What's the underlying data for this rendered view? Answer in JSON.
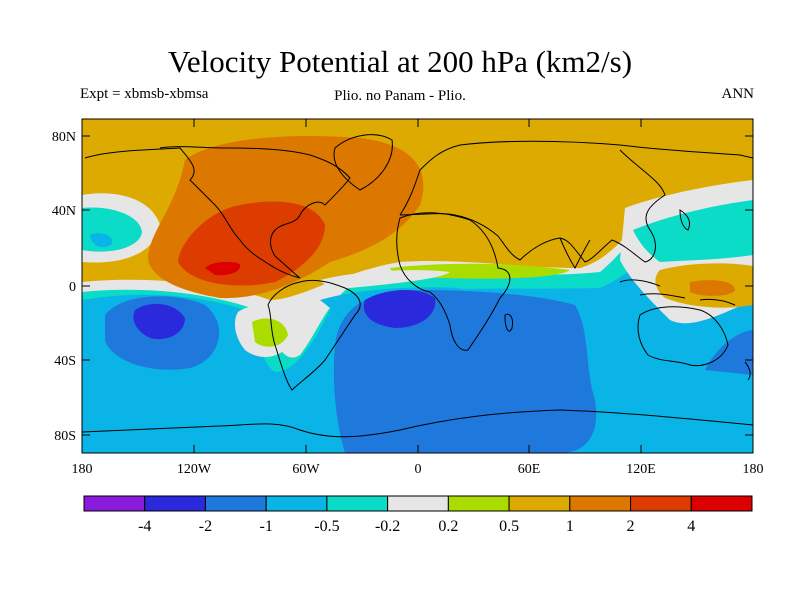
{
  "title": "Velocity Potential at 200 hPa (km2/s)",
  "subtitle_left": "Expt = xbmsb-xbmsa",
  "subtitle_center": "Plio. no Panam - Plio.",
  "subtitle_right": "ANN",
  "lat_labels": [
    "80N",
    "40N",
    "0",
    "40S",
    "80S"
  ],
  "lon_labels": [
    "180",
    "120W",
    "60W",
    "0",
    "60E",
    "120E",
    "180"
  ],
  "colorbar": {
    "colors": [
      "#8a1adc",
      "#2a2adc",
      "#1f78dc",
      "#0ab4e6",
      "#0adcc8",
      "#e6e6e6",
      "#aadc00",
      "#dcaa00",
      "#dc7800",
      "#dc3c00",
      "#dc0000"
    ],
    "labels": [
      "-4",
      "-2",
      "-1",
      "-0.5",
      "-0.2",
      "0.2",
      "0.5",
      "1",
      "2",
      "4"
    ]
  }
}
